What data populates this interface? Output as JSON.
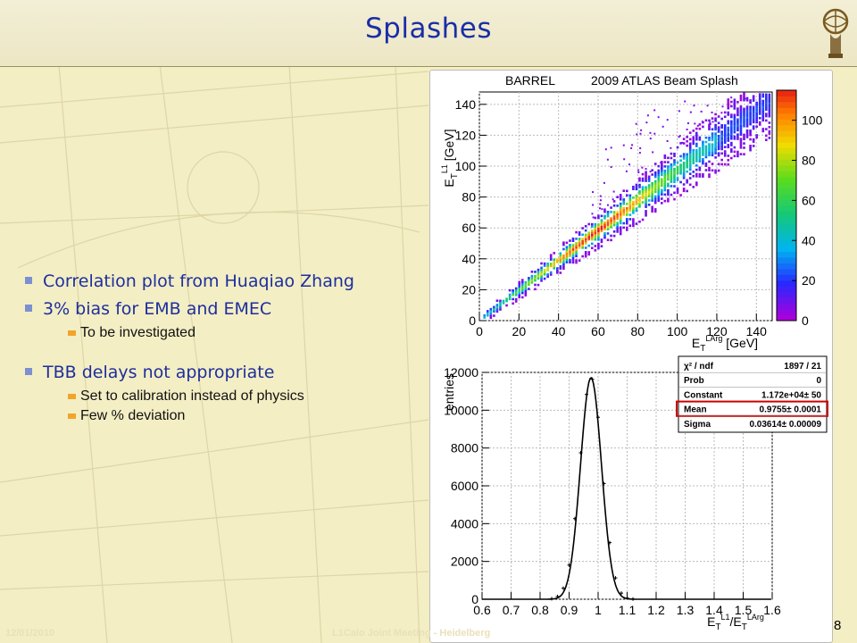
{
  "slide": {
    "title": "Splashes",
    "page_number": "8",
    "footer_date": "12/01/2010",
    "footer_meeting": "L1Calo Joint Meeting - Heidelberg"
  },
  "bullets": {
    "correlation": "Correlation plot from Huaqiao Zhang",
    "bias": "3% bias for EMB and EMEC",
    "investigate": "To be investigated",
    "tbb": "TBB delays not appropriate",
    "calibration": "Set to calibration instead of physics",
    "deviation": "Few % deviation"
  },
  "colors": {
    "title": "#1a2ea8",
    "bullet_text": "#1d2f9e",
    "fit_box_highlight": "#cc0000"
  },
  "chart_data": [
    {
      "type": "heatmap",
      "title": "2009 ATLAS Beam Splash",
      "region_label": "BARREL",
      "xlabel": "E_T^LArg [GeV]",
      "ylabel": "E_T^L1 [GeV]",
      "xlim": [
        0,
        148
      ],
      "ylim": [
        0,
        148
      ],
      "x_ticks": [
        0,
        20,
        40,
        60,
        80,
        100,
        120,
        140
      ],
      "y_ticks": [
        0,
        20,
        40,
        60,
        80,
        100,
        120,
        140
      ],
      "z_ticks": [
        0,
        20,
        40,
        60,
        80,
        100
      ],
      "zlim": [
        0,
        115
      ],
      "correlation_slope": 0.97,
      "grid": true
    },
    {
      "type": "histogram",
      "xlabel": "E_T^L1/E_T^LArg",
      "ylabel": "entries",
      "xlim": [
        0.6,
        1.6
      ],
      "ylim": [
        0,
        12000
      ],
      "x_ticks": [
        "0.6",
        "0.7",
        "0.8",
        "0.9",
        "1",
        "1.1",
        "1.2",
        "1.3",
        "1.4",
        "1.5",
        "1.6"
      ],
      "y_ticks": [
        "0",
        "2000",
        "4000",
        "6000",
        "8000",
        "10000",
        "12000"
      ],
      "fit": {
        "type": "gaussian",
        "constant": 11720,
        "mean": 0.9755,
        "sigma": 0.03614
      },
      "stats": [
        {
          "label": "χ² / ndf",
          "value": "1897 / 21"
        },
        {
          "label": "Prob",
          "value": "0"
        },
        {
          "label": "Constant",
          "value": "1.172e+04± 50"
        },
        {
          "label": "Mean",
          "value": "0.9755± 0.0001",
          "highlighted": true
        },
        {
          "label": "Sigma",
          "value": "0.03614± 0.00009"
        }
      ],
      "grid": true
    }
  ]
}
